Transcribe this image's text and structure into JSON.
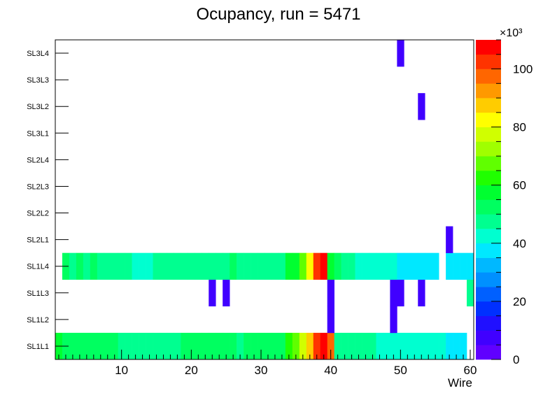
{
  "chart_data": {
    "type": "heatmap",
    "title": "Ocupancy, run = 5471",
    "xlabel": "Wire",
    "ylabel": "",
    "xlim": [
      0.5,
      60.5
    ],
    "x_ticks": [
      "10",
      "20",
      "30",
      "40",
      "50",
      "60"
    ],
    "y_categories": [
      "SL1L1",
      "SL1L2",
      "SL1L3",
      "SL1L4",
      "SL2L1",
      "SL2L2",
      "SL2L3",
      "SL2L4",
      "SL3L1",
      "SL3L2",
      "SL3L3",
      "SL3L4"
    ],
    "z_label_exponent": "×10³",
    "z_range": [
      0,
      110000
    ],
    "z_ticks": [
      "0",
      "20",
      "40",
      "60",
      "80",
      "100"
    ],
    "bin_scheme": "wire index (1-60) per layer; values estimated from palette",
    "layers": [
      {
        "layer": "SL1L1",
        "values": [
          57000,
          53000,
          53000,
          53000,
          53000,
          53000,
          53000,
          53000,
          53000,
          45000,
          45000,
          45000,
          45000,
          45000,
          45000,
          45000,
          45000,
          45000,
          53000,
          53000,
          53000,
          53000,
          53000,
          53000,
          53000,
          53000,
          45000,
          53000,
          53000,
          53000,
          53000,
          53000,
          53000,
          61000,
          67000,
          78000,
          87000,
          103000,
          107000,
          95000,
          49000,
          45000,
          45000,
          45000,
          45000,
          45000,
          41000,
          41000,
          41000,
          41000,
          41000,
          41000,
          41000,
          41000,
          41000,
          41000,
          37000,
          37000,
          37000,
          0
        ]
      },
      {
        "layer": "SL1L2",
        "values": [
          0,
          0,
          0,
          0,
          0,
          0,
          0,
          0,
          0,
          0,
          0,
          0,
          0,
          0,
          0,
          0,
          0,
          0,
          0,
          0,
          0,
          0,
          0,
          0,
          0,
          0,
          0,
          0,
          0,
          0,
          0,
          0,
          0,
          0,
          0,
          0,
          0,
          0,
          0,
          5000,
          0,
          0,
          0,
          0,
          0,
          0,
          0,
          0,
          5000,
          0,
          0,
          0,
          0,
          0,
          0,
          0,
          0,
          0,
          0,
          0
        ]
      },
      {
        "layer": "SL1L3",
        "values": [
          0,
          0,
          0,
          0,
          0,
          0,
          0,
          0,
          0,
          0,
          0,
          0,
          0,
          0,
          0,
          0,
          0,
          0,
          0,
          0,
          0,
          0,
          5000,
          0,
          5000,
          0,
          0,
          0,
          0,
          0,
          0,
          0,
          0,
          0,
          0,
          0,
          0,
          0,
          0,
          5000,
          0,
          0,
          0,
          0,
          0,
          0,
          0,
          0,
          5000,
          5000,
          0,
          0,
          5000,
          0,
          0,
          0,
          0,
          0,
          0,
          45000
        ]
      },
      {
        "layer": "SL1L4",
        "values": [
          0,
          53000,
          49000,
          53000,
          49000,
          53000,
          49000,
          45000,
          45000,
          45000,
          45000,
          41000,
          41000,
          41000,
          45000,
          45000,
          45000,
          45000,
          49000,
          49000,
          49000,
          49000,
          49000,
          49000,
          49000,
          53000,
          49000,
          49000,
          49000,
          49000,
          49000,
          49000,
          49000,
          57000,
          57000,
          67000,
          84000,
          103000,
          107000,
          57000,
          53000,
          45000,
          45000,
          41000,
          41000,
          41000,
          41000,
          41000,
          41000,
          37000,
          37000,
          37000,
          37000,
          37000,
          37000,
          0,
          37000,
          37000,
          37000,
          37000
        ]
      },
      {
        "layer": "SL2L1",
        "values": [
          0,
          0,
          0,
          0,
          0,
          0,
          0,
          0,
          0,
          0,
          0,
          0,
          0,
          0,
          0,
          0,
          0,
          0,
          0,
          0,
          0,
          0,
          0,
          0,
          0,
          0,
          0,
          0,
          0,
          0,
          0,
          0,
          0,
          0,
          0,
          0,
          0,
          0,
          0,
          0,
          0,
          0,
          0,
          0,
          0,
          0,
          0,
          0,
          0,
          0,
          0,
          0,
          0,
          0,
          0,
          0,
          5000,
          0,
          0,
          0
        ]
      },
      {
        "layer": "SL2L2",
        "values": []
      },
      {
        "layer": "SL2L3",
        "values": []
      },
      {
        "layer": "SL2L4",
        "values": []
      },
      {
        "layer": "SL3L1",
        "values": []
      },
      {
        "layer": "SL3L2",
        "values": [
          0,
          0,
          0,
          0,
          0,
          0,
          0,
          0,
          0,
          0,
          0,
          0,
          0,
          0,
          0,
          0,
          0,
          0,
          0,
          0,
          0,
          0,
          0,
          0,
          0,
          0,
          0,
          0,
          0,
          0,
          0,
          0,
          0,
          0,
          0,
          0,
          0,
          0,
          0,
          0,
          0,
          0,
          0,
          0,
          0,
          0,
          0,
          0,
          0,
          0,
          0,
          0,
          5000,
          0,
          0,
          0,
          0,
          0,
          0,
          0
        ]
      },
      {
        "layer": "SL3L3",
        "values": []
      },
      {
        "layer": "SL3L4",
        "values": [
          0,
          0,
          0,
          0,
          0,
          0,
          0,
          0,
          0,
          0,
          0,
          0,
          0,
          0,
          0,
          0,
          0,
          0,
          0,
          0,
          0,
          0,
          0,
          0,
          0,
          0,
          0,
          0,
          0,
          0,
          0,
          0,
          0,
          0,
          0,
          0,
          0,
          0,
          0,
          0,
          0,
          0,
          0,
          0,
          0,
          0,
          0,
          0,
          0,
          5000,
          0,
          0,
          0,
          0,
          0,
          0,
          0,
          0,
          0,
          0
        ]
      }
    ]
  }
}
